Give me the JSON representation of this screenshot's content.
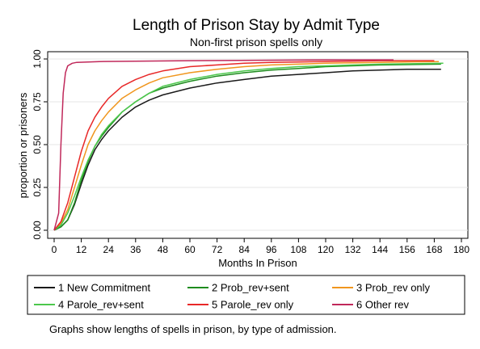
{
  "chart_data": {
    "type": "line",
    "title": "Length of Prison Stay by Admit Type",
    "subtitle": "Non-first prison spells only",
    "xlabel": "Months In Prison",
    "ylabel": "proportion or prisoners",
    "xlim": [
      0,
      180
    ],
    "ylim": [
      0,
      1
    ],
    "x_ticks": [
      0,
      12,
      24,
      36,
      48,
      60,
      72,
      84,
      96,
      108,
      120,
      132,
      144,
      156,
      168,
      180
    ],
    "y_ticks": [
      0,
      0.25,
      0.5,
      0.75,
      1
    ],
    "y_tick_labels": [
      "0.00",
      "0.25",
      "0.50",
      "0.75",
      "1.00"
    ],
    "grid": true,
    "legend_position": "bottom",
    "note": "Graphs show lengths of spells in prison, by type of admission.",
    "series": [
      {
        "name": "1 New Commitment",
        "color": "#1a1a1a",
        "points": [
          [
            0,
            0
          ],
          [
            3,
            0.02
          ],
          [
            6,
            0.06
          ],
          [
            9,
            0.15
          ],
          [
            12,
            0.27
          ],
          [
            15,
            0.38
          ],
          [
            18,
            0.47
          ],
          [
            21,
            0.53
          ],
          [
            24,
            0.58
          ],
          [
            30,
            0.66
          ],
          [
            36,
            0.72
          ],
          [
            42,
            0.76
          ],
          [
            48,
            0.79
          ],
          [
            60,
            0.83
          ],
          [
            72,
            0.86
          ],
          [
            84,
            0.88
          ],
          [
            96,
            0.9
          ],
          [
            108,
            0.91
          ],
          [
            120,
            0.92
          ],
          [
            132,
            0.93
          ],
          [
            144,
            0.935
          ],
          [
            156,
            0.94
          ],
          [
            171,
            0.94
          ]
        ]
      },
      {
        "name": "2 Prob_rev+sent",
        "color": "#1e8c1e",
        "points": [
          [
            0,
            0
          ],
          [
            3,
            0.02
          ],
          [
            6,
            0.06
          ],
          [
            9,
            0.16
          ],
          [
            12,
            0.29
          ],
          [
            15,
            0.4
          ],
          [
            18,
            0.49
          ],
          [
            21,
            0.55
          ],
          [
            24,
            0.6
          ],
          [
            30,
            0.69
          ],
          [
            36,
            0.75
          ],
          [
            42,
            0.8
          ],
          [
            48,
            0.83
          ],
          [
            60,
            0.87
          ],
          [
            72,
            0.9
          ],
          [
            84,
            0.92
          ],
          [
            96,
            0.935
          ],
          [
            108,
            0.945
          ],
          [
            120,
            0.955
          ],
          [
            144,
            0.965
          ],
          [
            171,
            0.97
          ]
        ]
      },
      {
        "name": "3 Prob_rev only",
        "color": "#f0961e",
        "points": [
          [
            0,
            0
          ],
          [
            3,
            0.04
          ],
          [
            6,
            0.12
          ],
          [
            9,
            0.25
          ],
          [
            12,
            0.38
          ],
          [
            15,
            0.5
          ],
          [
            18,
            0.58
          ],
          [
            21,
            0.64
          ],
          [
            24,
            0.69
          ],
          [
            30,
            0.77
          ],
          [
            36,
            0.82
          ],
          [
            42,
            0.86
          ],
          [
            48,
            0.89
          ],
          [
            60,
            0.92
          ],
          [
            72,
            0.94
          ],
          [
            84,
            0.955
          ],
          [
            96,
            0.965
          ],
          [
            108,
            0.97
          ],
          [
            120,
            0.975
          ],
          [
            144,
            0.98
          ],
          [
            170,
            0.985
          ]
        ]
      },
      {
        "name": "4 Parole_rev+sent",
        "color": "#4cc84c",
        "points": [
          [
            0,
            0
          ],
          [
            3,
            0.03
          ],
          [
            6,
            0.1
          ],
          [
            9,
            0.2
          ],
          [
            12,
            0.31
          ],
          [
            15,
            0.41
          ],
          [
            18,
            0.49
          ],
          [
            21,
            0.56
          ],
          [
            24,
            0.61
          ],
          [
            30,
            0.69
          ],
          [
            36,
            0.75
          ],
          [
            42,
            0.8
          ],
          [
            48,
            0.84
          ],
          [
            60,
            0.88
          ],
          [
            72,
            0.91
          ],
          [
            84,
            0.93
          ],
          [
            96,
            0.945
          ],
          [
            108,
            0.955
          ],
          [
            120,
            0.96
          ],
          [
            144,
            0.97
          ],
          [
            172,
            0.975
          ]
        ]
      },
      {
        "name": "5 Parole_rev only",
        "color": "#e82828",
        "points": [
          [
            0,
            0
          ],
          [
            3,
            0.05
          ],
          [
            6,
            0.16
          ],
          [
            9,
            0.31
          ],
          [
            12,
            0.46
          ],
          [
            15,
            0.58
          ],
          [
            18,
            0.66
          ],
          [
            21,
            0.72
          ],
          [
            24,
            0.77
          ],
          [
            30,
            0.84
          ],
          [
            36,
            0.88
          ],
          [
            42,
            0.91
          ],
          [
            48,
            0.93
          ],
          [
            60,
            0.955
          ],
          [
            72,
            0.965
          ],
          [
            84,
            0.975
          ],
          [
            96,
            0.98
          ],
          [
            120,
            0.985
          ],
          [
            144,
            0.99
          ],
          [
            168,
            0.99
          ]
        ]
      },
      {
        "name": "6 Other rev",
        "color": "#c0285a",
        "points": [
          [
            0,
            0
          ],
          [
            2,
            0.1
          ],
          [
            3,
            0.5
          ],
          [
            4,
            0.8
          ],
          [
            5,
            0.92
          ],
          [
            6,
            0.96
          ],
          [
            8,
            0.975
          ],
          [
            10,
            0.98
          ],
          [
            20,
            0.985
          ],
          [
            60,
            0.99
          ],
          [
            120,
            0.995
          ],
          [
            150,
            0.995
          ]
        ]
      }
    ]
  }
}
